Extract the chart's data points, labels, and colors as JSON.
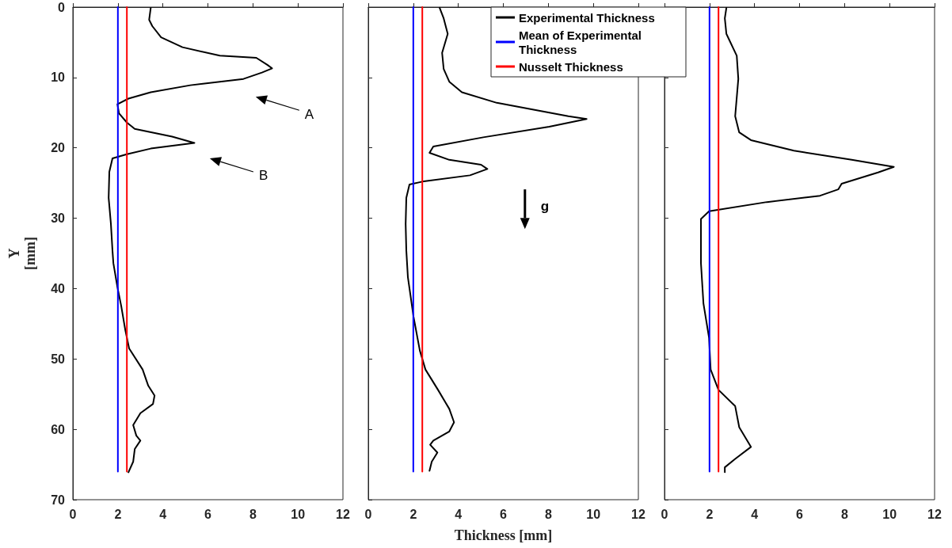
{
  "chart_data": [
    {
      "type": "line",
      "ylabel": "Y [mm]",
      "xlim": [
        0,
        12
      ],
      "xticks": [
        0,
        2,
        4,
        6,
        8,
        10,
        12
      ],
      "ylim": [
        70,
        0
      ],
      "yticks": [
        0,
        10,
        20,
        30,
        40,
        50,
        60,
        70
      ],
      "marker": "none",
      "line_style": "solid",
      "annotations": [
        "A",
        "B"
      ],
      "series": [
        {
          "color": "#000000",
          "x": [
            3.46,
            3.39,
            3.53,
            3.92,
            4.87,
            6.53,
            8.15,
            8.64,
            8.85,
            8.4,
            7.58,
            5.22,
            3.46,
            2.47,
            1.98,
            2.05,
            2.4,
            2.75,
            4.41,
            5.4,
            3.46,
            2.4,
            1.76,
            1.62,
            1.59,
            1.69,
            1.76,
            1.8,
            1.98,
            2.15,
            2.33,
            2.5,
            3.1,
            3.35,
            3.63,
            3.56,
            3.0,
            2.68,
            2.82,
            3.0,
            2.75,
            2.68,
            2.47
          ],
          "values": [
            0.1,
            1.8,
            2.7,
            4.3,
            5.7,
            6.9,
            7.2,
            8.2,
            8.7,
            9.3,
            10.2,
            11.1,
            12.1,
            13.0,
            13.8,
            15.1,
            16.4,
            17.3,
            18.4,
            19.3,
            20.1,
            20.9,
            21.5,
            23.4,
            27.1,
            30.8,
            34.6,
            36.4,
            39.8,
            42.5,
            45.9,
            48.5,
            51.5,
            53.8,
            55.2,
            56.4,
            57.7,
            59.4,
            60.9,
            61.6,
            62.8,
            64.6,
            66.1
          ]
        },
        {
          "color": "#0000ff",
          "x": [
            2,
            2
          ],
          "values": [
            0,
            66
          ]
        },
        {
          "color": "#ff0000",
          "x": [
            2.4,
            2.4
          ],
          "values": [
            0,
            66
          ]
        }
      ]
    },
    {
      "type": "line",
      "xlabel": "Thickness [mm]",
      "xlim": [
        0,
        12
      ],
      "xticks": [
        0,
        2,
        4,
        6,
        8,
        10,
        12
      ],
      "ylim": [
        70,
        0
      ],
      "yticks": [
        0,
        10,
        20,
        30,
        40,
        50,
        60,
        70
      ],
      "tick_labels": "x",
      "marker": "none",
      "line_style": "solid",
      "legend": "top right",
      "annotations": [
        "g"
      ],
      "series": [
        {
          "name": "Experimental Thickness",
          "color": "#000000",
          "x": [
            3.17,
            3.35,
            3.53,
            3.28,
            3.35,
            3.6,
            4.16,
            5.71,
            8.89,
            9.7,
            8.04,
            5.11,
            2.89,
            2.72,
            3.6,
            5.01,
            5.29,
            4.52,
            2.4,
            1.83,
            1.69,
            1.66,
            1.69,
            1.76,
            2.01,
            2.29,
            2.54,
            3.1,
            3.6,
            3.81,
            3.6,
            2.89,
            2.75,
            3.07,
            2.82,
            2.72
          ],
          "values": [
            0.1,
            1.6,
            3.8,
            6.5,
            8.8,
            10.6,
            12.1,
            13.6,
            15.5,
            15.9,
            17.0,
            18.5,
            19.8,
            20.7,
            21.7,
            22.4,
            23.0,
            23.9,
            24.8,
            25.2,
            27.1,
            30.8,
            34.6,
            38.4,
            44.0,
            48.8,
            51.5,
            54.4,
            57.1,
            59.0,
            60.3,
            61.6,
            62.2,
            63.3,
            64.6,
            65.9
          ]
        },
        {
          "name": "Mean of Experimental Thickness",
          "color": "#0000ff",
          "x": [
            2,
            2
          ],
          "values": [
            0,
            66
          ]
        },
        {
          "name": "Nusselt Thickness",
          "color": "#ff0000",
          "x": [
            2.4,
            2.4
          ],
          "values": [
            0,
            66
          ]
        }
      ]
    },
    {
      "type": "line",
      "xlim": [
        0,
        12
      ],
      "xticks": [
        0,
        2,
        4,
        6,
        8,
        10,
        12
      ],
      "ylim": [
        70,
        0
      ],
      "yticks": [
        0,
        10,
        20,
        30,
        40,
        50,
        60,
        70
      ],
      "tick_labels": "x",
      "marker": "none",
      "line_style": "solid",
      "series": [
        {
          "color": "#000000",
          "x": [
            2.75,
            2.68,
            2.75,
            3.21,
            3.28,
            3.14,
            3.32,
            3.84,
            5.75,
            8.32,
            10.19,
            9.49,
            7.87,
            7.72,
            6.91,
            4.55,
            1.98,
            1.62,
            1.62,
            1.62,
            1.73,
            1.98,
            2.05,
            2.4,
            3.14,
            3.32,
            3.84,
            3.14,
            2.68,
            2.68
          ],
          "values": [
            0.1,
            1.6,
            3.8,
            6.9,
            10.2,
            15.5,
            17.8,
            18.9,
            20.4,
            21.7,
            22.7,
            23.5,
            25.1,
            25.9,
            26.8,
            27.7,
            29.0,
            30.1,
            34.6,
            36.4,
            42.1,
            47.0,
            51.5,
            54.4,
            56.7,
            59.7,
            62.5,
            64.2,
            65.4,
            66.1
          ]
        },
        {
          "color": "#0000ff",
          "x": [
            2,
            2
          ],
          "values": [
            0,
            66
          ]
        },
        {
          "color": "#ff0000",
          "x": [
            2.4,
            2.4
          ],
          "values": [
            0,
            66
          ]
        }
      ]
    }
  ]
}
